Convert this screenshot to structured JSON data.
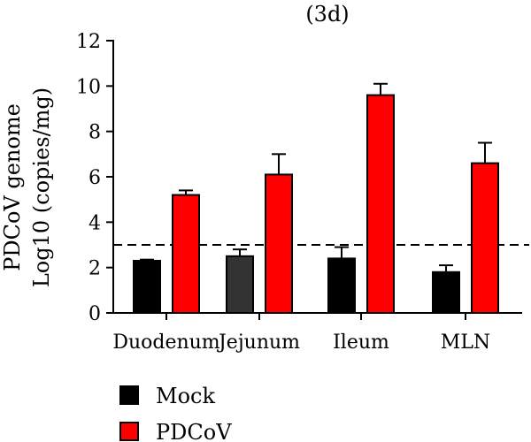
{
  "chart_data": {
    "type": "bar",
    "title": "(3d)",
    "ylabel_lines": [
      "PDCoV genome",
      "Log10 (copies/mg)"
    ],
    "xlabel": "",
    "ylim": [
      0,
      12
    ],
    "yticks": [
      0,
      2,
      4,
      6,
      8,
      10,
      12
    ],
    "categories": [
      "Duodenum",
      "Jejunum",
      "Ileum",
      "MLN"
    ],
    "series": [
      {
        "name": "Mock",
        "values": [
          2.3,
          2.5,
          2.4,
          1.8
        ],
        "errors": [
          0.05,
          0.3,
          0.5,
          0.3
        ],
        "colors": [
          "#000000",
          "#333333",
          "#000000",
          "#000000"
        ]
      },
      {
        "name": "PDCoV",
        "values": [
          5.2,
          6.1,
          9.6,
          6.6
        ],
        "errors": [
          0.2,
          0.9,
          0.5,
          0.9
        ],
        "colors": [
          "#ff0000",
          "#ff0000",
          "#ff0000",
          "#ff0000"
        ]
      }
    ],
    "threshold": 3,
    "threshold_style": "dashed",
    "grid": false,
    "legend": {
      "placement": "bottom-left",
      "items": [
        {
          "name": "Mock",
          "color": "#000000"
        },
        {
          "name": "PDCoV",
          "color": "#ff0000"
        }
      ]
    }
  }
}
